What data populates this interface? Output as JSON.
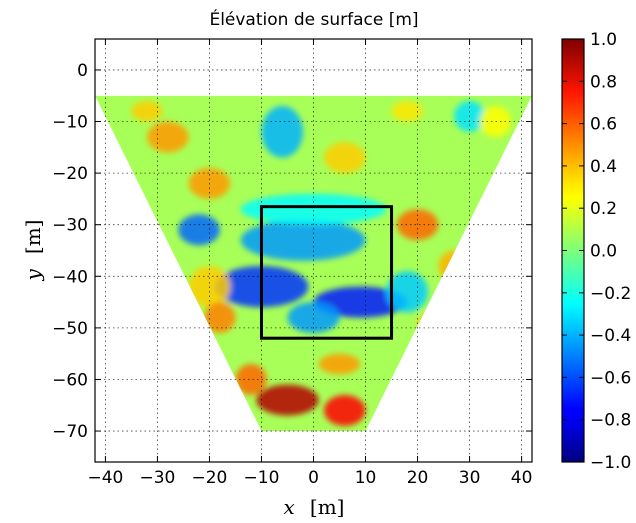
{
  "chart_data": {
    "type": "heatmap",
    "title": "Élévation de surface [m]",
    "xlabel": {
      "var": "x",
      "unit": "[m]"
    },
    "ylabel": {
      "var": "y",
      "unit": "[m]"
    },
    "xlim": [
      -42,
      42
    ],
    "ylim": [
      -76,
      6
    ],
    "xticks": [
      -40,
      -30,
      -20,
      -10,
      0,
      10,
      20,
      30,
      40
    ],
    "yticks": [
      0,
      -10,
      -20,
      -30,
      -40,
      -50,
      -60,
      -70
    ],
    "xtick_labels": [
      "−40",
      "−30",
      "−20",
      "−10",
      "0",
      "10",
      "20",
      "30",
      "40"
    ],
    "ytick_labels": [
      "0",
      "−10",
      "−20",
      "−30",
      "−40",
      "−50",
      "−60",
      "−70"
    ],
    "grid": true,
    "colormap": "jet",
    "color_range": [
      -1.0,
      1.0
    ],
    "colorbar_ticks": [
      1.0,
      0.8,
      0.6,
      0.4,
      0.2,
      0.0,
      -0.2,
      -0.4,
      -0.6,
      -0.8,
      -1.0
    ],
    "colorbar_labels": [
      "1.0",
      "0.8",
      "0.6",
      "0.4",
      "0.2",
      "0.0",
      "−0.2",
      "−0.4",
      "−0.6",
      "−0.8",
      "−1.0"
    ],
    "domain_polygon": [
      [
        -42,
        -5
      ],
      [
        42,
        -5
      ],
      [
        10,
        -70
      ],
      [
        -10,
        -70
      ]
    ],
    "highlight_box": {
      "x": [
        -10,
        15
      ],
      "y": [
        -52,
        -26.5
      ]
    },
    "features": [
      {
        "x": -10,
        "y": -42,
        "value": -0.65,
        "sx": 9,
        "sy": 4
      },
      {
        "x": 9,
        "y": -45,
        "value": -0.7,
        "sx": 9,
        "sy": 3
      },
      {
        "x": -22,
        "y": -31,
        "value": -0.55,
        "sx": 4,
        "sy": 3
      },
      {
        "x": 0,
        "y": -48,
        "value": -0.45,
        "sx": 5,
        "sy": 3
      },
      {
        "x": -2,
        "y": -33,
        "value": -0.45,
        "sx": 12,
        "sy": 4
      },
      {
        "x": -6,
        "y": -12,
        "value": -0.4,
        "sx": 4,
        "sy": 5
      },
      {
        "x": 18,
        "y": -43,
        "value": -0.35,
        "sx": 4,
        "sy": 4
      },
      {
        "x": 30,
        "y": -9,
        "value": -0.3,
        "sx": 3,
        "sy": 3
      },
      {
        "x": 0,
        "y": -27,
        "value": -0.25,
        "sx": 14,
        "sy": 3
      },
      {
        "x": -20,
        "y": -42,
        "value": 0.35,
        "sx": 4,
        "sy": 4
      },
      {
        "x": -5,
        "y": -64,
        "value": 0.9,
        "sx": 6,
        "sy": 3
      },
      {
        "x": 6,
        "y": -66,
        "value": 0.75,
        "sx": 4,
        "sy": 3
      },
      {
        "x": -12,
        "y": -60,
        "value": 0.55,
        "sx": 3,
        "sy": 3
      },
      {
        "x": 5,
        "y": -57,
        "value": 0.45,
        "sx": 4,
        "sy": 2
      },
      {
        "x": 20,
        "y": -30,
        "value": 0.55,
        "sx": 4,
        "sy": 3
      },
      {
        "x": 27,
        "y": -38,
        "value": 0.4,
        "sx": 3,
        "sy": 3
      },
      {
        "x": 23,
        "y": -49,
        "value": 0.35,
        "sx": 3,
        "sy": 2
      },
      {
        "x": -20,
        "y": -22,
        "value": 0.45,
        "sx": 4,
        "sy": 3
      },
      {
        "x": -28,
        "y": -13,
        "value": 0.45,
        "sx": 4,
        "sy": 3
      },
      {
        "x": -32,
        "y": -8,
        "value": 0.35,
        "sx": 3,
        "sy": 2
      },
      {
        "x": 6,
        "y": -17,
        "value": 0.35,
        "sx": 4,
        "sy": 3
      },
      {
        "x": -18,
        "y": -48,
        "value": 0.5,
        "sx": 3,
        "sy": 3
      },
      {
        "x": 18,
        "y": -8,
        "value": 0.3,
        "sx": 3,
        "sy": 2
      },
      {
        "x": 35,
        "y": -10,
        "value": 0.25,
        "sx": 3,
        "sy": 3
      }
    ]
  }
}
